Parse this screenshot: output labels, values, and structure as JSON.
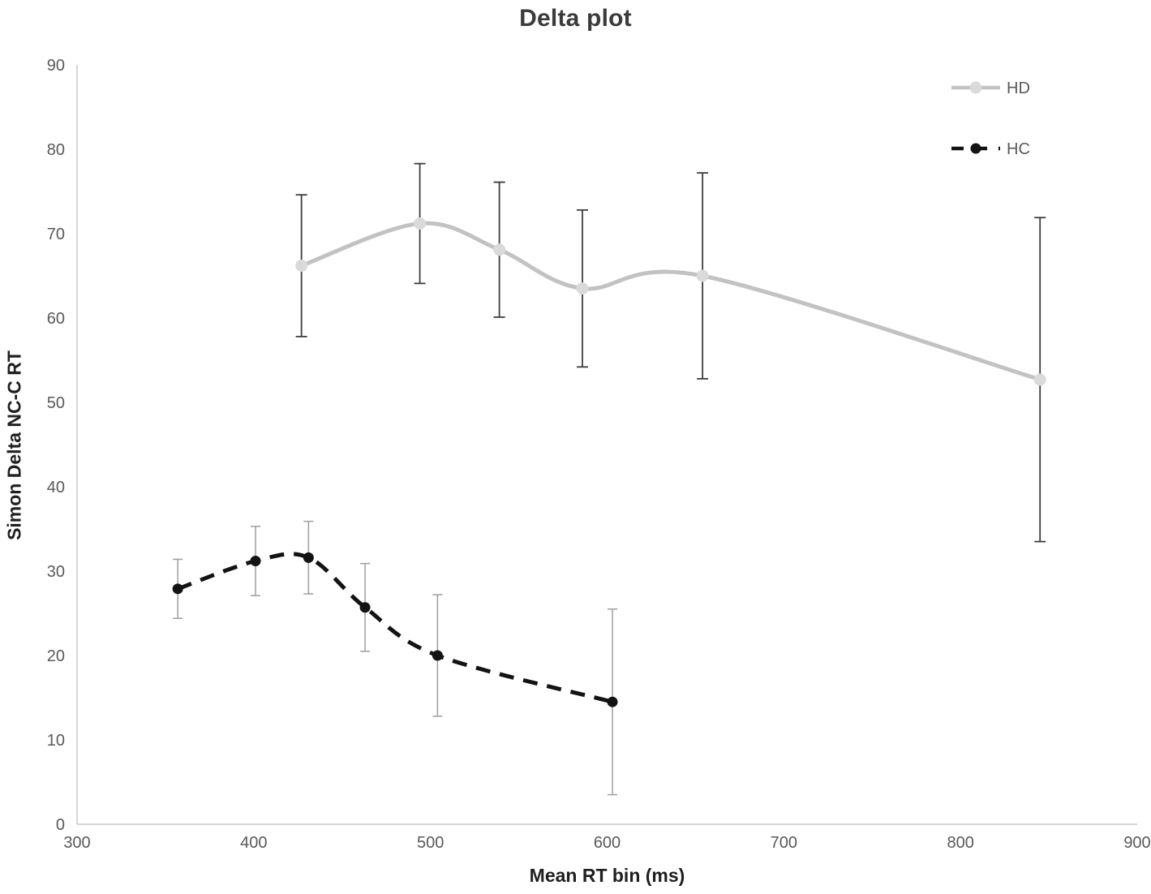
{
  "title": "Delta plot",
  "chart_data": {
    "type": "line",
    "title": "Delta plot",
    "xlabel": "Mean RT bin (ms)",
    "ylabel": "Simon Delta NC-C RT",
    "xlim": [
      300,
      900
    ],
    "ylim": [
      0,
      90
    ],
    "xticks": [
      300,
      400,
      500,
      600,
      700,
      800,
      900
    ],
    "yticks": [
      0,
      10,
      20,
      30,
      40,
      50,
      60,
      70,
      80,
      90
    ],
    "grid": false,
    "legend_position": "top-right",
    "series": [
      {
        "name": "HD",
        "line_style": "solid",
        "smooth": true,
        "color": "#c2c2c2",
        "marker_color": "#dadada",
        "error_color": "#3d3d3d",
        "x": [
          427,
          494,
          539,
          586,
          654,
          845
        ],
        "y": [
          66.2,
          71.2,
          68.1,
          63.5,
          65.0,
          52.7
        ],
        "yerr": [
          8.4,
          7.1,
          8.0,
          9.3,
          12.2,
          19.2
        ]
      },
      {
        "name": "HC",
        "line_style": "dashed",
        "smooth": true,
        "color": "#131313",
        "marker_color": "#131313",
        "error_color": "#9e9e9e",
        "x": [
          357,
          401,
          431,
          463,
          504,
          603
        ],
        "y": [
          27.9,
          31.2,
          31.6,
          25.7,
          20.0,
          14.5
        ],
        "yerr": [
          3.5,
          4.1,
          4.3,
          5.2,
          7.2,
          11.0
        ]
      }
    ]
  },
  "colors": {
    "axis_line": "#c8c8c8",
    "tick_text": "#595959",
    "title_text": "#3b3b3b",
    "axis_title_text": "#1f1f1f",
    "background": "#ffffff"
  }
}
